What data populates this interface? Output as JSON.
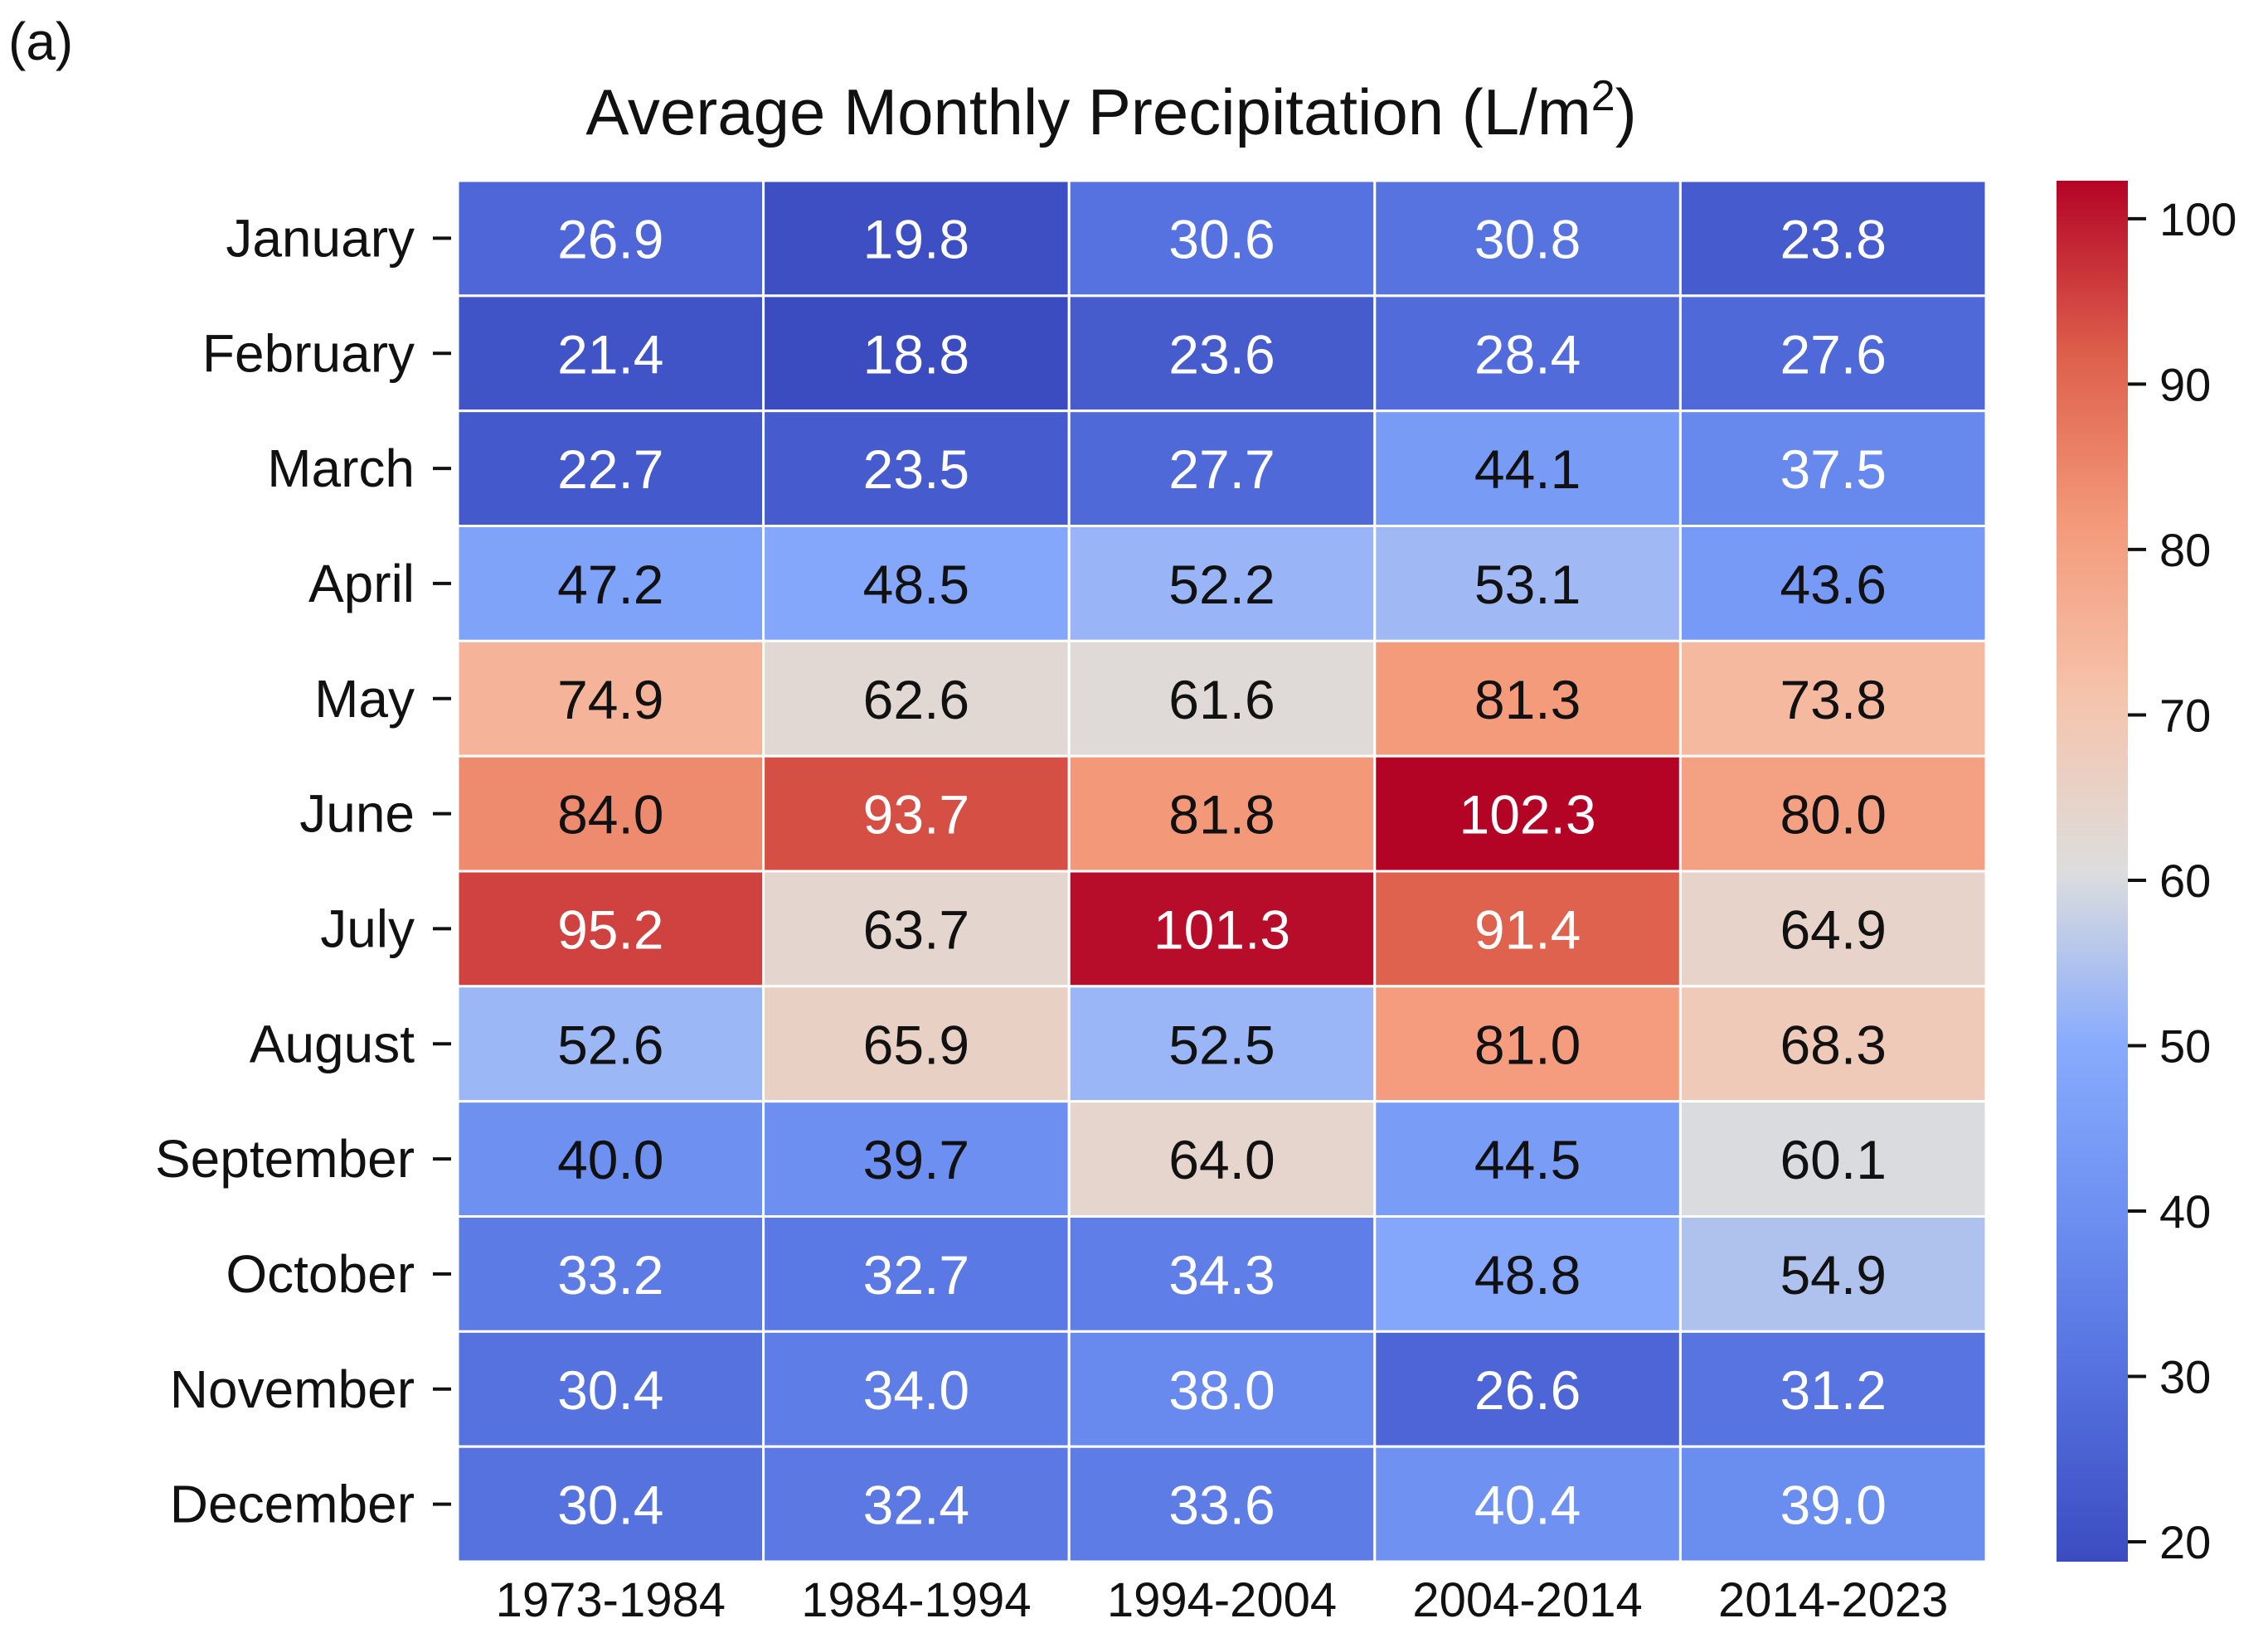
{
  "panel_label": "(a)",
  "chart_data": {
    "type": "heatmap",
    "title": "Average Monthly Precipitation (L/m²)",
    "title_parts": {
      "main": "Average Monthly Precipitation (L/m",
      "superscript": "2",
      "closing": ")"
    },
    "xlabel": "",
    "ylabel": "",
    "colormap": "coolwarm",
    "colors": {
      "low": "#3b4cc0",
      "mid": "#dddddd",
      "high": "#b40426"
    },
    "color_range": [
      18.8,
      102.3
    ],
    "grid_lines": true,
    "colorbar": {
      "position": "right",
      "ticks": [
        20,
        30,
        40,
        50,
        60,
        70,
        80,
        90,
        100
      ]
    },
    "columns": [
      "1973-1984",
      "1984-1994",
      "1994-2004",
      "2004-2014",
      "2014-2023"
    ],
    "rows": [
      "January",
      "February",
      "March",
      "April",
      "May",
      "June",
      "July",
      "August",
      "September",
      "October",
      "November",
      "December"
    ],
    "values": [
      [
        26.9,
        19.8,
        30.6,
        30.8,
        23.8
      ],
      [
        21.4,
        18.8,
        23.6,
        28.4,
        27.6
      ],
      [
        22.7,
        23.5,
        27.7,
        44.1,
        37.5
      ],
      [
        47.2,
        48.5,
        52.2,
        53.1,
        43.6
      ],
      [
        74.9,
        62.6,
        61.6,
        81.3,
        73.8
      ],
      [
        84.0,
        93.7,
        81.8,
        102.3,
        80.0
      ],
      [
        95.2,
        63.7,
        101.3,
        91.4,
        64.9
      ],
      [
        52.6,
        65.9,
        52.5,
        81.0,
        68.3
      ],
      [
        40.0,
        39.7,
        64.0,
        44.5,
        60.1
      ],
      [
        33.2,
        32.7,
        34.3,
        48.8,
        54.9
      ],
      [
        30.4,
        34.0,
        38.0,
        26.6,
        31.2
      ],
      [
        30.4,
        32.4,
        33.6,
        40.4,
        39.0
      ]
    ],
    "cell_labels": [
      [
        "26.9",
        "19.8",
        "30.6",
        "30.8",
        "23.8"
      ],
      [
        "21.4",
        "18.8",
        "23.6",
        "28.4",
        "27.6"
      ],
      [
        "22.7",
        "23.5",
        "27.7",
        "44.1",
        "37.5"
      ],
      [
        "47.2",
        "48.5",
        "52.2",
        "53.1",
        "43.6"
      ],
      [
        "74.9",
        "62.6",
        "61.6",
        "81.3",
        "73.8"
      ],
      [
        "84.0",
        "93.7",
        "81.8",
        "102.3",
        "80.0"
      ],
      [
        "95.2",
        "63.7",
        "101.3",
        "91.4",
        "64.9"
      ],
      [
        "52.6",
        "65.9",
        "52.5",
        "81.0",
        "68.3"
      ],
      [
        "40.0",
        "39.7",
        "64.0",
        "44.5",
        "60.1"
      ],
      [
        "33.2",
        "32.7",
        "34.3",
        "48.8",
        "54.9"
      ],
      [
        "30.4",
        "34.0",
        "38.0",
        "26.6",
        "31.2"
      ],
      [
        "30.4",
        "32.4",
        "33.6",
        "40.4",
        "39.0"
      ]
    ],
    "label_colors": [
      [
        "#ffffff",
        "#ffffff",
        "#ffffff",
        "#ffffff",
        "#ffffff"
      ],
      [
        "#ffffff",
        "#ffffff",
        "#ffffff",
        "#ffffff",
        "#ffffff"
      ],
      [
        "#ffffff",
        "#ffffff",
        "#ffffff",
        "#111111",
        "#ffffff"
      ],
      [
        "#111111",
        "#111111",
        "#111111",
        "#111111",
        "#111111"
      ],
      [
        "#111111",
        "#111111",
        "#111111",
        "#111111",
        "#111111"
      ],
      [
        "#111111",
        "#ffffff",
        "#111111",
        "#ffffff",
        "#111111"
      ],
      [
        "#ffffff",
        "#111111",
        "#ffffff",
        "#ffffff",
        "#111111"
      ],
      [
        "#111111",
        "#111111",
        "#111111",
        "#111111",
        "#111111"
      ],
      [
        "#111111",
        "#111111",
        "#111111",
        "#111111",
        "#111111"
      ],
      [
        "#ffffff",
        "#ffffff",
        "#ffffff",
        "#111111",
        "#111111"
      ],
      [
        "#ffffff",
        "#ffffff",
        "#ffffff",
        "#ffffff",
        "#ffffff"
      ],
      [
        "#ffffff",
        "#ffffff",
        "#ffffff",
        "#ffffff",
        "#ffffff"
      ]
    ]
  }
}
